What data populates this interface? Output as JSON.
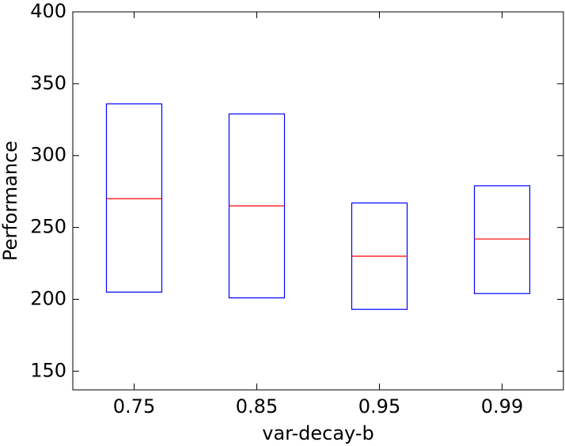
{
  "chart_data": {
    "type": "box",
    "xlabel": "var-decay-b",
    "ylabel": "Performance",
    "categories": [
      "0.75",
      "0.85",
      "0.95",
      "0.99"
    ],
    "q1": [
      205,
      201,
      193,
      204
    ],
    "median": [
      270,
      265,
      230,
      242
    ],
    "q3": [
      336,
      329,
      267,
      279
    ],
    "box_color": "#0000ff",
    "median_color": "#ff0000",
    "ylim": [
      137,
      400
    ],
    "yticks": [
      150,
      200,
      250,
      300,
      350,
      400
    ],
    "grid": false
  }
}
